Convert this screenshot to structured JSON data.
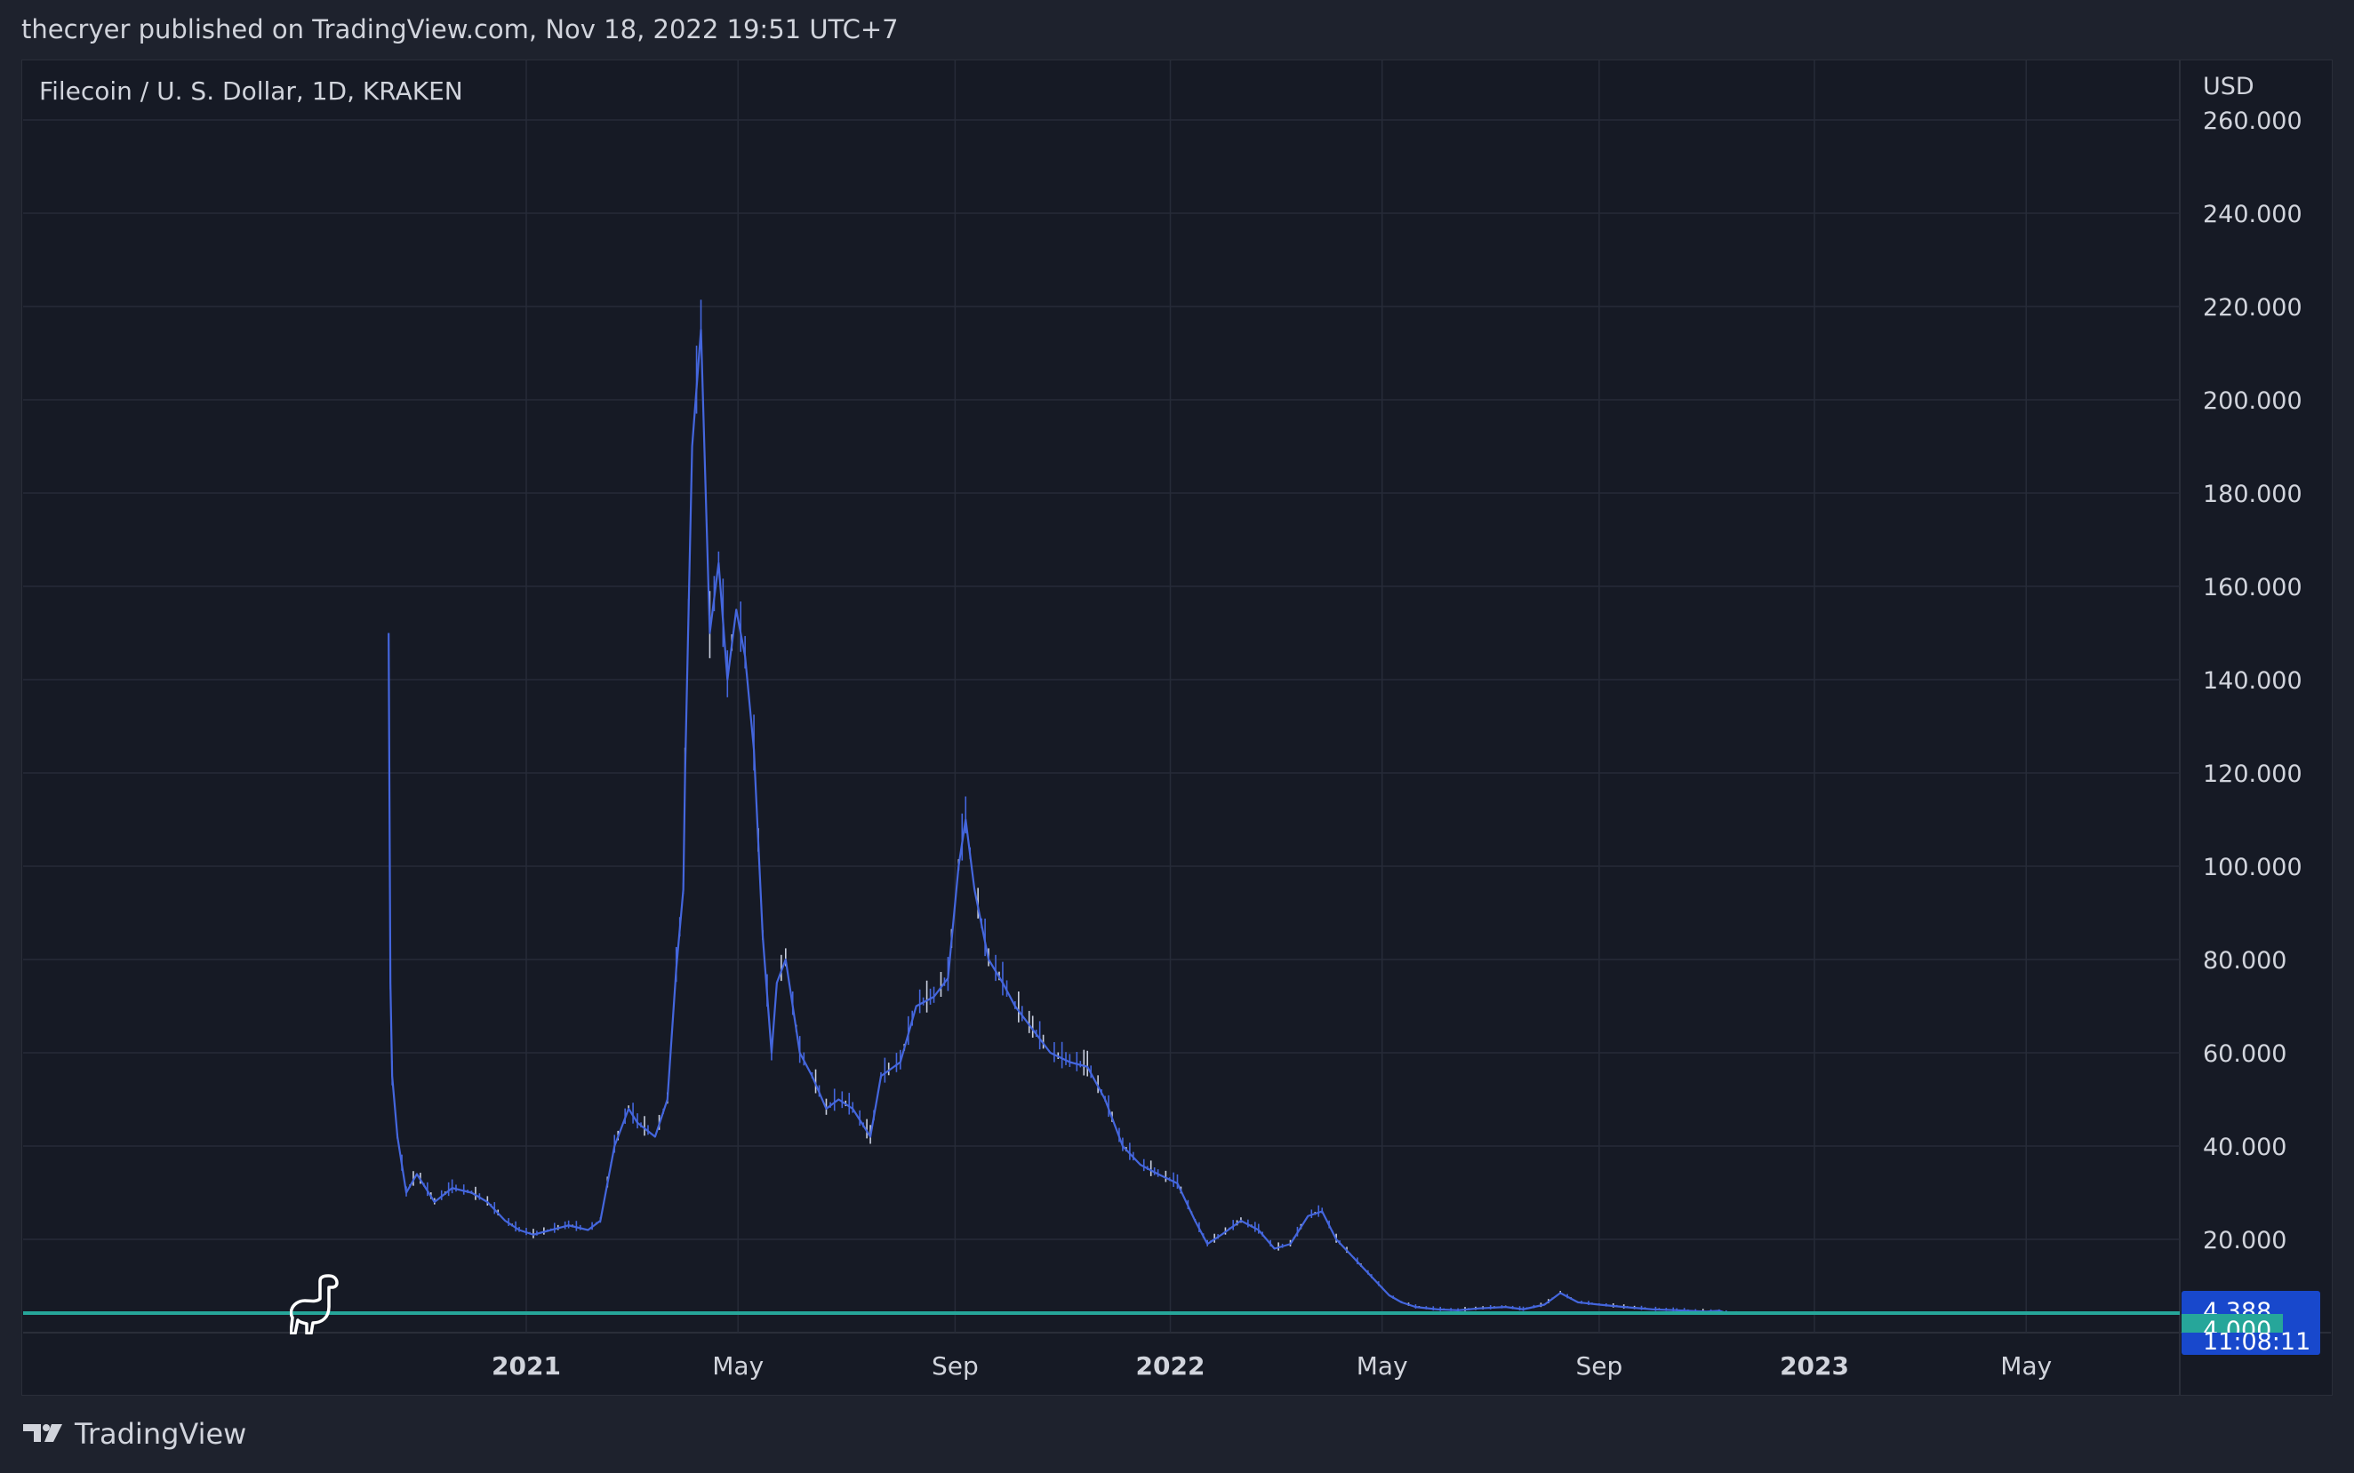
{
  "header": {
    "published": "thecryer published on TradingView.com, Nov 18, 2022 19:51 UTC+7"
  },
  "symbol": {
    "title": "Filecoin / U. S. Dollar, 1D, KRAKEN",
    "currency": "USD"
  },
  "footer": {
    "brand": "TradingView"
  },
  "colors": {
    "background": "#161a25",
    "grid": "#262b38",
    "series": "#4466dd",
    "series_light": "#c9cfdf",
    "price_badge": "#1848cc",
    "support_line": "#26a69a"
  },
  "price_badge": {
    "price": "4.388",
    "countdown": "11:08:11"
  },
  "support_badge": {
    "price": "4.000"
  },
  "chart_data": {
    "type": "line",
    "title": "Filecoin / U. S. Dollar, 1D, KRAKEN",
    "xlabel": "",
    "ylabel": "USD",
    "ylim": [
      0,
      260
    ],
    "grid": true,
    "y_ticks": [
      "20.000",
      "40.000",
      "60.000",
      "80.000",
      "100.000",
      "120.000",
      "140.000",
      "160.000",
      "180.000",
      "200.000",
      "220.000",
      "240.000",
      "260.000"
    ],
    "x_ticks": [
      {
        "label": "2021",
        "date": "2021-01-01",
        "bold": true
      },
      {
        "label": "May",
        "date": "2021-05-01",
        "bold": false
      },
      {
        "label": "Sep",
        "date": "2021-09-01",
        "bold": false
      },
      {
        "label": "2022",
        "date": "2022-01-01",
        "bold": true
      },
      {
        "label": "May",
        "date": "2022-05-01",
        "bold": false
      },
      {
        "label": "Sep",
        "date": "2022-09-01",
        "bold": false
      },
      {
        "label": "2023",
        "date": "2023-01-01",
        "bold": true
      },
      {
        "label": "May",
        "date": "2023-05-01",
        "bold": false
      }
    ],
    "horizontal_lines": [
      4.0,
      4.388
    ],
    "series": [
      {
        "x": [
          "2020-10-15",
          "2020-10-16",
          "2020-10-17",
          "2020-10-20",
          "2020-10-25",
          "2020-10-31",
          "2020-11-10",
          "2020-11-20",
          "2020-12-01",
          "2020-12-10",
          "2020-12-20",
          "2020-12-28",
          "2021-01-05",
          "2021-01-15",
          "2021-01-25",
          "2021-02-05",
          "2021-02-12",
          "2021-02-20",
          "2021-02-28",
          "2021-03-05",
          "2021-03-15",
          "2021-03-22",
          "2021-03-27",
          "2021-03-31",
          "2021-04-01",
          "2021-04-05",
          "2021-04-10",
          "2021-04-15",
          "2021-04-20",
          "2021-04-25",
          "2021-04-30",
          "2021-05-05",
          "2021-05-10",
          "2021-05-15",
          "2021-05-20",
          "2021-05-23",
          "2021-05-28",
          "2021-06-05",
          "2021-06-12",
          "2021-06-20",
          "2021-06-27",
          "2021-07-05",
          "2021-07-15",
          "2021-07-21",
          "2021-08-01",
          "2021-08-10",
          "2021-08-20",
          "2021-08-28",
          "2021-09-03",
          "2021-09-07",
          "2021-09-12",
          "2021-09-20",
          "2021-09-28",
          "2021-10-05",
          "2021-10-15",
          "2021-10-25",
          "2021-11-05",
          "2021-11-15",
          "2021-11-25",
          "2021-12-05",
          "2021-12-15",
          "2021-12-25",
          "2022-01-05",
          "2022-01-15",
          "2022-01-22",
          "2022-01-30",
          "2022-02-10",
          "2022-02-20",
          "2022-03-01",
          "2022-03-10",
          "2022-03-20",
          "2022-03-28",
          "2022-04-05",
          "2022-04-15",
          "2022-04-25",
          "2022-05-05",
          "2022-05-12",
          "2022-05-20",
          "2022-06-01",
          "2022-06-13",
          "2022-06-25",
          "2022-07-10",
          "2022-07-20",
          "2022-08-01",
          "2022-08-10",
          "2022-08-20",
          "2022-09-01",
          "2022-09-15",
          "2022-10-01",
          "2022-10-15",
          "2022-11-01",
          "2022-11-08",
          "2022-11-12",
          "2022-11-18"
        ],
        "values": [
          150,
          75,
          55,
          42,
          30,
          34,
          28,
          31,
          30,
          28,
          24,
          22,
          21,
          22,
          23,
          22,
          24,
          40,
          48,
          45,
          42,
          50,
          78,
          95,
          120,
          190,
          215,
          150,
          165,
          140,
          155,
          145,
          125,
          85,
          60,
          75,
          80,
          60,
          55,
          48,
          50,
          48,
          42,
          55,
          58,
          70,
          72,
          76,
          100,
          110,
          95,
          80,
          75,
          70,
          65,
          60,
          58,
          57,
          50,
          40,
          36,
          34,
          32,
          24,
          19,
          21,
          24,
          22,
          18,
          19,
          25,
          26,
          20,
          16,
          12,
          8,
          6.5,
          5.5,
          5.0,
          4.8,
          5.2,
          5.5,
          5.0,
          6.0,
          8.5,
          6.5,
          6.0,
          5.5,
          5.0,
          4.8,
          4.5,
          4.7,
          4.2,
          4.388
        ]
      }
    ]
  }
}
